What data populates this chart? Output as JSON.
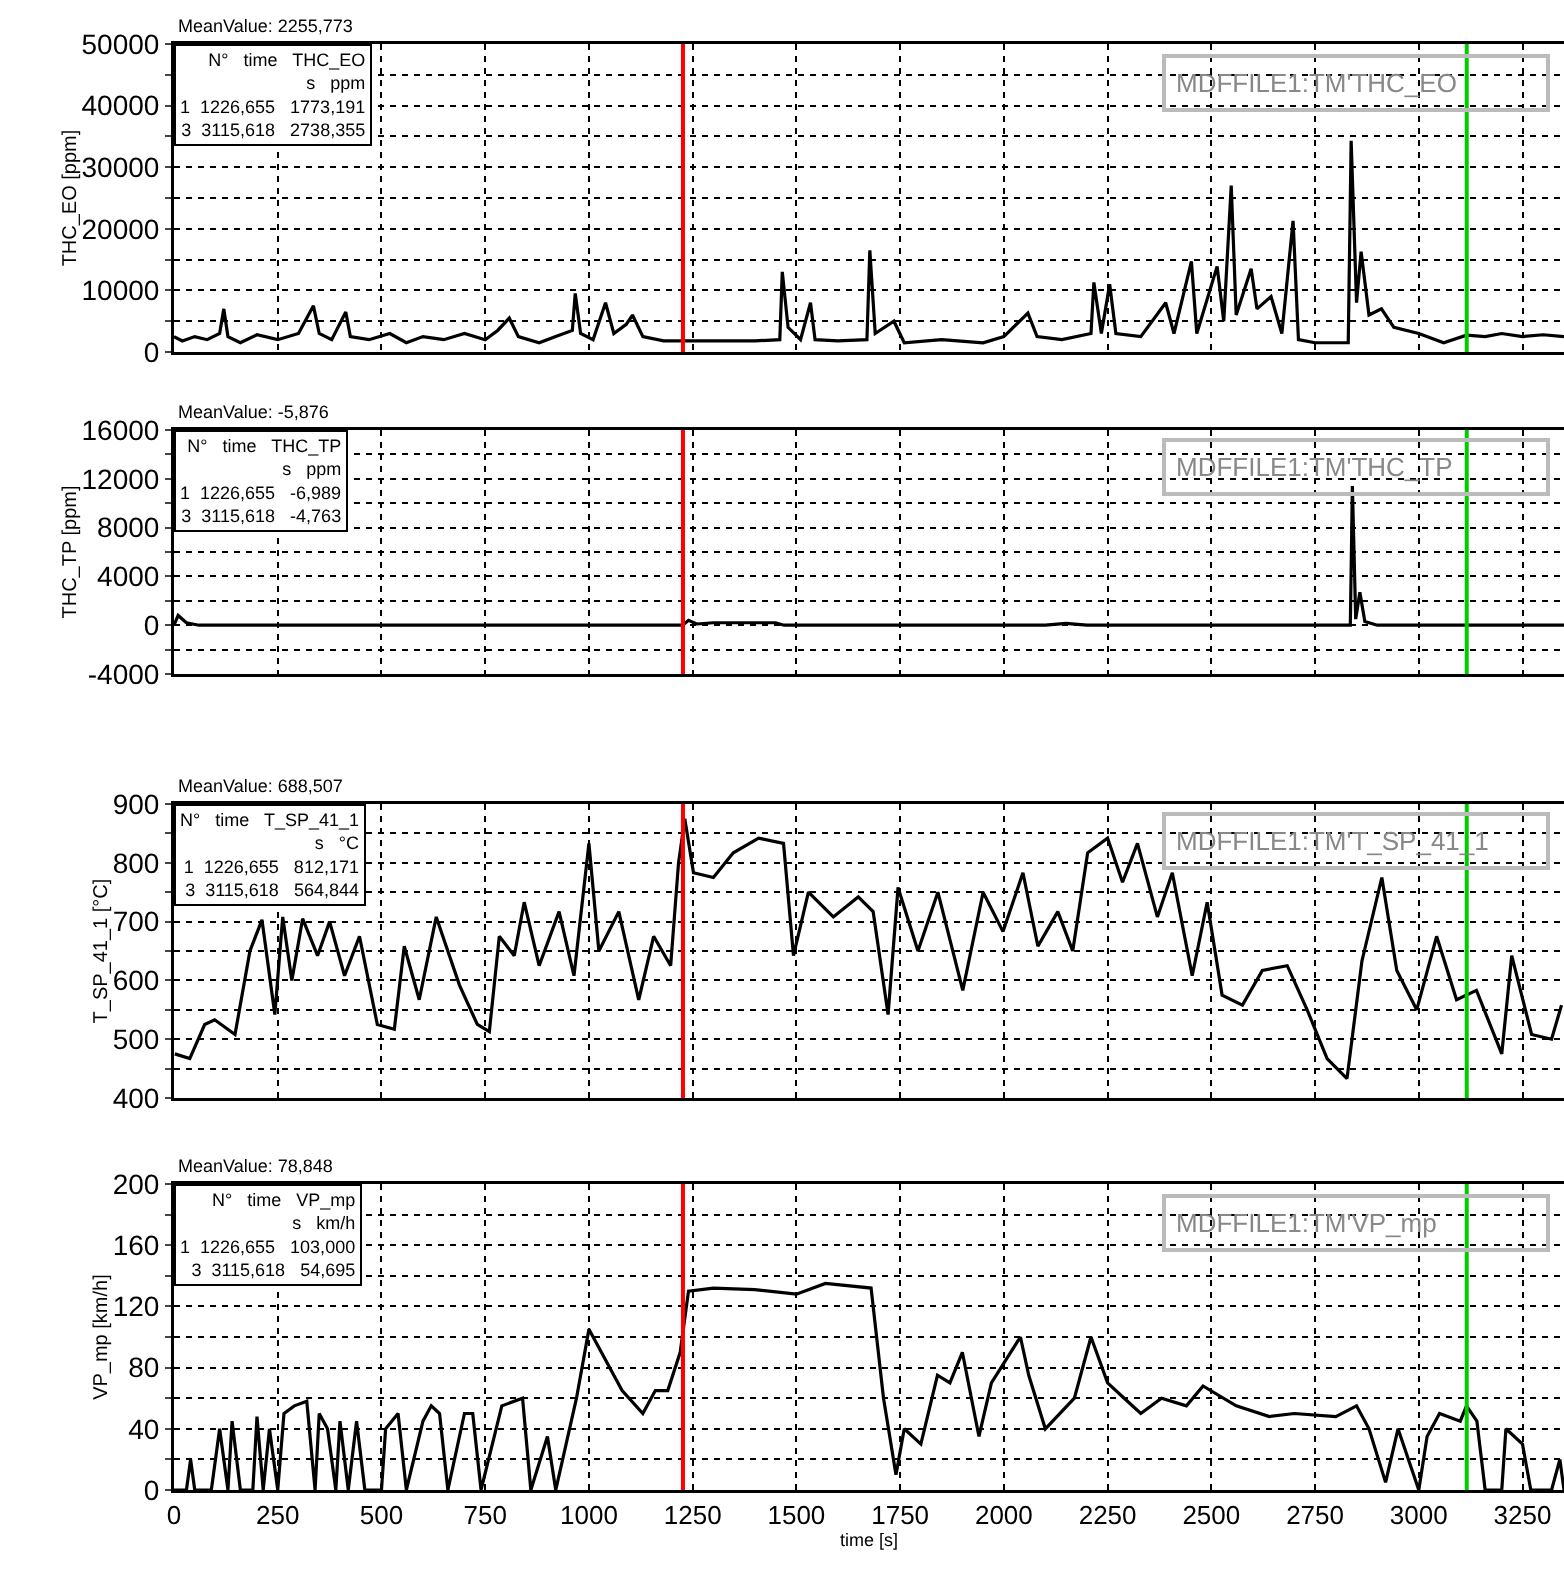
{
  "chart_data": [
    {
      "type": "line",
      "ylabel": "THC_EO [ppm]",
      "color": "#000000",
      "tick_labels": "y",
      "grid": true,
      "marker": "none",
      "line_style": "solid",
      "annotations": [
        "MeanValue: 2255,773",
        "N°   time   THC_EO\ns   ppm\n1  1226,655   1773,191\n3  3115,618   2738,355",
        "MDFFILE1:TM'THC_EO"
      ],
      "xlim": [
        0,
        3350
      ],
      "xticks": [
        0,
        250,
        500,
        750,
        1000,
        1250,
        1500,
        1750,
        2000,
        2250,
        2500,
        2750,
        3000,
        3250
      ],
      "ylim": [
        0,
        50000
      ],
      "yticks": [
        0,
        {
          "value": 5000,
          "label": null
        },
        10000,
        {
          "value": 15000,
          "label": null
        },
        20000,
        {
          "value": 25000,
          "label": null
        },
        30000,
        {
          "value": 35000,
          "label": null
        },
        40000,
        {
          "value": 45000,
          "label": null
        },
        50000
      ],
      "ref_lines": [
        {
          "axis": "x",
          "value": 1226.655,
          "color": "#ff0000"
        },
        {
          "axis": "x",
          "value": 3115.618,
          "color": "#00cc00"
        }
      ],
      "x": [
        0,
        20,
        50,
        80,
        110,
        120,
        130,
        160,
        200,
        250,
        300,
        336,
        350,
        380,
        414,
        425,
        470,
        520,
        560,
        600,
        650,
        700,
        750,
        780,
        808,
        830,
        880,
        920,
        960,
        967,
        980,
        1010,
        1040,
        1060,
        1090,
        1105,
        1130,
        1180,
        1226,
        1300,
        1400,
        1460,
        1466,
        1480,
        1510,
        1534,
        1545,
        1600,
        1670,
        1677,
        1690,
        1735,
        1760,
        1850,
        1950,
        2000,
        2058,
        2080,
        2140,
        2210,
        2217,
        2235,
        2255,
        2270,
        2330,
        2390,
        2410,
        2452,
        2465,
        2514,
        2530,
        2548,
        2560,
        2596,
        2610,
        2644,
        2670,
        2697,
        2710,
        2750,
        2830,
        2837,
        2850,
        2861,
        2880,
        2910,
        2940,
        3000,
        3060,
        3115,
        3160,
        3200,
        3250,
        3300,
        3350
      ],
      "values": [
        2500,
        1800,
        2500,
        2000,
        3000,
        7000,
        2500,
        1500,
        2800,
        2000,
        3000,
        7500,
        3000,
        2000,
        6500,
        2500,
        2000,
        3000,
        1500,
        2500,
        2000,
        3000,
        2000,
        3500,
        5500,
        2500,
        1500,
        2500,
        3500,
        9500,
        3000,
        2000,
        8000,
        3000,
        4500,
        6000,
        2500,
        1800,
        1800,
        1800,
        1800,
        2000,
        13000,
        4000,
        2000,
        8000,
        2000,
        1800,
        2000,
        16500,
        3000,
        5000,
        1500,
        2000,
        1500,
        2500,
        6300,
        2500,
        2000,
        3000,
        11300,
        3000,
        11000,
        3000,
        2500,
        8000,
        3000,
        14700,
        3000,
        13900,
        5000,
        27000,
        6000,
        13500,
        7000,
        9000,
        3000,
        21300,
        2000,
        1500,
        1500,
        34300,
        8000,
        16300,
        6000,
        7000,
        4000,
        3000,
        1500,
        2738,
        2500,
        3000,
        2500,
        2800,
        2500
      ]
    },
    {
      "type": "line",
      "ylabel": "THC_TP [ppm]",
      "color": "#000000",
      "tick_labels": "y",
      "grid": true,
      "marker": "none",
      "line_style": "solid",
      "annotations": [
        "MeanValue: -5,876",
        "N°   time   THC_TP\ns   ppm\n1  1226,655   -6,989\n3  3115,618   -4,763",
        "MDFFILE1:TM'THC_TP"
      ],
      "xlim": [
        0,
        3350
      ],
      "xticks": [
        0,
        250,
        500,
        750,
        1000,
        1250,
        1500,
        1750,
        2000,
        2250,
        2500,
        2750,
        3000,
        3250
      ],
      "ylim": [
        -4000,
        16000
      ],
      "yticks": [
        -4000,
        {
          "value": -2000,
          "label": null
        },
        0,
        {
          "value": 2000,
          "label": null
        },
        4000,
        {
          "value": 6000,
          "label": null
        },
        8000,
        {
          "value": 10000,
          "label": null
        },
        12000,
        {
          "value": 14000,
          "label": null
        },
        16000
      ],
      "ref_lines": [
        {
          "axis": "x",
          "value": 1226.655,
          "color": "#ff0000"
        },
        {
          "axis": "x",
          "value": 3115.618,
          "color": "#00cc00"
        }
      ],
      "x": [
        0,
        10,
        30,
        60,
        500,
        1226,
        1240,
        1260,
        1300,
        1450,
        1470,
        2100,
        2150,
        2200,
        2835,
        2840,
        2848,
        2858,
        2870,
        2900,
        3115,
        3350
      ],
      "values": [
        0,
        800,
        200,
        0,
        0,
        0,
        400,
        100,
        200,
        200,
        0,
        0,
        150,
        0,
        0,
        11400,
        500,
        2700,
        300,
        0,
        0,
        0
      ]
    },
    {
      "type": "line",
      "ylabel": "T_SP_41_1 [°C]",
      "color": "#000000",
      "tick_labels": "y",
      "grid": true,
      "marker": "none",
      "line_style": "solid",
      "annotations": [
        "MeanValue: 688,507",
        "N°   time   T_SP_41_1\ns   °C\n1  1226,655   812,171\n3  3115,618   564,844",
        "MDFFILE1:TM'T_SP_41_1"
      ],
      "xlim": [
        0,
        3350
      ],
      "xticks": [
        0,
        250,
        500,
        750,
        1000,
        1250,
        1500,
        1750,
        2000,
        2250,
        2500,
        2750,
        3000,
        3250
      ],
      "ylim": [
        400,
        900
      ],
      "yticks": [
        400,
        {
          "value": 450,
          "label": null
        },
        500,
        {
          "value": 550,
          "label": null
        },
        600,
        {
          "value": 650,
          "label": null
        },
        700,
        {
          "value": 750,
          "label": null
        },
        800,
        {
          "value": 850,
          "label": null
        },
        900
      ],
      "ref_lines": [
        {
          "axis": "x",
          "value": 1226.655,
          "color": "#ff0000"
        },
        {
          "axis": "x",
          "value": 3115.618,
          "color": "#00cc00"
        }
      ],
      "x": [
        2,
        38,
        74,
        98,
        147,
        183,
        212,
        243,
        262,
        284,
        310,
        346,
        375,
        411,
        447,
        490,
        531,
        555,
        591,
        632,
        688,
        731,
        760,
        784,
        820,
        844,
        880,
        928,
        964,
        1000,
        1024,
        1072,
        1120,
        1156,
        1197,
        1216,
        1231,
        1252,
        1300,
        1348,
        1409,
        1469,
        1493,
        1529,
        1589,
        1649,
        1685,
        1721,
        1745,
        1793,
        1841,
        1901,
        1950,
        1998,
        2046,
        2082,
        2130,
        2166,
        2202,
        2250,
        2286,
        2322,
        2370,
        2406,
        2454,
        2490,
        2526,
        2575,
        2623,
        2683,
        2731,
        2779,
        2827,
        2863,
        2911,
        2947,
        2995,
        3043,
        3091,
        3139,
        3200,
        3224,
        3272,
        3320,
        3344
      ],
      "values": [
        475,
        467,
        525,
        533,
        508,
        650,
        703,
        542,
        708,
        600,
        705,
        642,
        700,
        608,
        675,
        525,
        517,
        658,
        567,
        708,
        592,
        525,
        513,
        675,
        642,
        733,
        625,
        717,
        608,
        833,
        650,
        717,
        567,
        675,
        625,
        800,
        875,
        783,
        775,
        817,
        842,
        833,
        642,
        750,
        708,
        742,
        717,
        542,
        758,
        650,
        750,
        583,
        750,
        683,
        783,
        658,
        717,
        650,
        817,
        842,
        767,
        833,
        708,
        783,
        608,
        733,
        575,
        558,
        617,
        625,
        550,
        467,
        433,
        633,
        775,
        617,
        550,
        675,
        567,
        583,
        475,
        642,
        508,
        500,
        558
      ]
    },
    {
      "type": "line",
      "ylabel": "VP_mp [km/h]",
      "xlabel": "time [s]",
      "color": "#000000",
      "grid": true,
      "marker": "none",
      "line_style": "solid",
      "annotations": [
        "MeanValue: 78,848",
        "N°   time   VP_mp\ns   km/h\n1  1226,655   103,000\n3  3115,618   54,695",
        "MDFFILE1:TM'VP_mp"
      ],
      "xlim": [
        0,
        3350
      ],
      "xticks": [
        0,
        250,
        500,
        750,
        1000,
        1250,
        1500,
        1750,
        2000,
        2250,
        2500,
        2750,
        3000,
        3250
      ],
      "ylim": [
        0,
        200
      ],
      "yticks": [
        0,
        {
          "value": 20,
          "label": null
        },
        40,
        {
          "value": 60,
          "label": null
        },
        80,
        {
          "value": 100,
          "label": null
        },
        120,
        {
          "value": 140,
          "label": null
        },
        160,
        {
          "value": 180,
          "label": null
        },
        200
      ],
      "ref_lines": [
        {
          "axis": "x",
          "value": 1226.655,
          "color": "#ff0000"
        },
        {
          "axis": "x",
          "value": 3115.618,
          "color": "#00cc00"
        }
      ],
      "x": [
        0,
        30,
        40,
        50,
        90,
        110,
        130,
        140,
        160,
        190,
        200,
        215,
        230,
        250,
        265,
        290,
        320,
        340,
        350,
        370,
        390,
        400,
        420,
        440,
        460,
        500,
        510,
        540,
        560,
        600,
        620,
        640,
        660,
        700,
        720,
        740,
        790,
        840,
        860,
        900,
        920,
        970,
        1000,
        1030,
        1080,
        1130,
        1160,
        1190,
        1220,
        1240,
        1300,
        1400,
        1500,
        1570,
        1680,
        1710,
        1740,
        1760,
        1800,
        1840,
        1870,
        1900,
        1940,
        1970,
        2040,
        2060,
        2100,
        2170,
        2210,
        2250,
        2290,
        2330,
        2380,
        2440,
        2480,
        2560,
        2640,
        2700,
        2800,
        2850,
        2880,
        2920,
        2950,
        3000,
        3020,
        3050,
        3100,
        3115,
        3140,
        3160,
        3200,
        3210,
        3250,
        3270,
        3320,
        3340,
        3350
      ],
      "values": [
        0,
        0,
        20,
        0,
        0,
        40,
        0,
        45,
        0,
        0,
        48,
        0,
        40,
        0,
        50,
        55,
        58,
        0,
        50,
        40,
        0,
        45,
        0,
        45,
        0,
        0,
        40,
        50,
        0,
        45,
        55,
        50,
        0,
        50,
        50,
        0,
        55,
        60,
        0,
        35,
        0,
        60,
        105,
        90,
        65,
        50,
        65,
        65,
        90,
        130,
        132,
        131,
        128,
        135,
        132,
        60,
        10,
        40,
        30,
        75,
        70,
        90,
        35,
        70,
        100,
        75,
        40,
        60,
        100,
        70,
        60,
        50,
        60,
        55,
        68,
        55,
        48,
        50,
        48,
        55,
        40,
        5,
        40,
        0,
        35,
        50,
        45,
        55,
        45,
        0,
        0,
        40,
        30,
        0,
        0,
        20,
        0
      ]
    }
  ]
}
